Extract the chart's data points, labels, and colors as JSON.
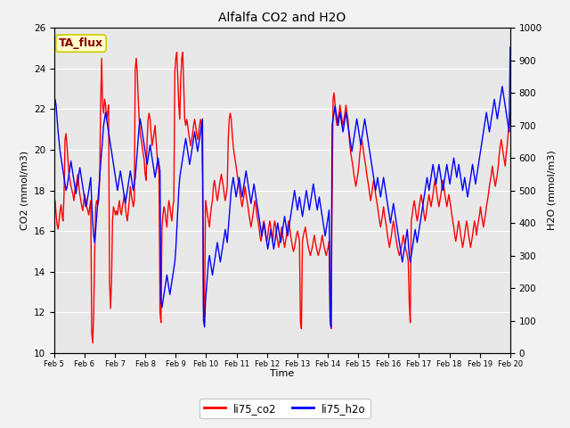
{
  "title": "Alfalfa CO2 and H2O",
  "xlabel": "Time",
  "ylabel_left": "CO2 (mmol/m3)",
  "ylabel_right": "H2O (mmol/m3)",
  "ylim_left": [
    10,
    26
  ],
  "ylim_right": [
    0,
    1000
  ],
  "yticks_left": [
    10,
    12,
    14,
    16,
    18,
    20,
    22,
    24,
    26
  ],
  "yticks_right": [
    0,
    100,
    200,
    300,
    400,
    500,
    600,
    700,
    800,
    900,
    1000
  ],
  "xtick_labels": [
    "Feb 5",
    "Feb 6",
    "Feb 7",
    "Feb 8",
    "Feb 9",
    "Feb 10",
    "Feb 11",
    "Feb 12",
    "Feb 13",
    "Feb 14",
    "Feb 15",
    "Feb 16",
    "Feb 17",
    "Feb 18",
    "Feb 19",
    "Feb 20"
  ],
  "legend_labels": [
    "li75_co2",
    "li75_h2o"
  ],
  "legend_colors": [
    "red",
    "blue"
  ],
  "annotation_text": "TA_flux",
  "annotation_color": "#8B0000",
  "annotation_bg": "#FFFFCC",
  "annotation_border": "#CCCC00",
  "plot_bg_color": "#E8E8E8",
  "fig_bg_color": "#F2F2F2",
  "line_color_co2": "red",
  "line_color_h2o": "blue",
  "line_width": 1.0,
  "co2_data": [
    17.2,
    17.5,
    16.8,
    16.3,
    16.1,
    16.5,
    17.0,
    17.3,
    16.8,
    16.5,
    17.8,
    20.5,
    20.8,
    20.2,
    19.5,
    18.8,
    18.5,
    18.2,
    18.0,
    17.8,
    17.5,
    18.0,
    18.2,
    18.5,
    18.8,
    18.2,
    17.8,
    17.5,
    17.2,
    17.0,
    17.5,
    17.8,
    17.5,
    17.2,
    17.0,
    16.8,
    17.2,
    17.5,
    11.0,
    10.5,
    12.0,
    15.0,
    17.2,
    17.5,
    17.3,
    17.5,
    18.5,
    22.2,
    24.5,
    22.2,
    21.8,
    22.5,
    22.2,
    21.5,
    21.8,
    22.2,
    13.5,
    12.2,
    13.5,
    16.5,
    17.2,
    17.0,
    16.8,
    17.0,
    16.8,
    17.2,
    17.5,
    17.0,
    16.8,
    17.2,
    17.5,
    17.8,
    17.2,
    16.8,
    16.5,
    17.0,
    17.5,
    18.2,
    17.8,
    17.5,
    17.2,
    17.5,
    24.0,
    24.5,
    23.8,
    22.5,
    21.5,
    20.8,
    20.5,
    20.2,
    19.8,
    19.5,
    18.8,
    18.5,
    20.5,
    21.5,
    21.8,
    21.5,
    20.8,
    20.2,
    20.5,
    20.8,
    21.2,
    20.5,
    19.8,
    19.2,
    18.8,
    12.0,
    11.5,
    16.2,
    16.8,
    17.2,
    17.0,
    16.5,
    16.2,
    17.0,
    17.5,
    17.2,
    16.8,
    16.5,
    17.2,
    17.5,
    23.8,
    24.5,
    24.8,
    23.5,
    22.2,
    21.5,
    23.5,
    24.5,
    24.8,
    23.2,
    21.5,
    21.2,
    21.5,
    21.2,
    20.8,
    20.5,
    20.2,
    20.5,
    20.8,
    21.2,
    21.5,
    21.2,
    20.8,
    20.5,
    20.8,
    21.2,
    21.5,
    21.2,
    18.5,
    12.2,
    11.8,
    17.5,
    17.2,
    16.8,
    16.5,
    16.2,
    16.8,
    17.2,
    17.5,
    18.2,
    18.5,
    18.2,
    17.8,
    17.5,
    17.8,
    18.2,
    18.5,
    18.8,
    18.5,
    18.2,
    17.8,
    17.5,
    17.8,
    18.2,
    20.5,
    21.5,
    21.8,
    21.5,
    20.8,
    20.2,
    19.8,
    19.5,
    19.2,
    18.8,
    18.5,
    18.2,
    17.8,
    17.5,
    17.2,
    17.5,
    17.8,
    18.2,
    17.8,
    17.5,
    17.2,
    16.8,
    16.5,
    16.2,
    16.5,
    16.8,
    17.2,
    17.5,
    17.2,
    16.8,
    16.5,
    16.2,
    15.8,
    15.5,
    15.8,
    16.2,
    16.5,
    16.2,
    15.8,
    15.5,
    15.8,
    16.2,
    16.5,
    16.2,
    15.8,
    15.5,
    16.2,
    16.5,
    16.2,
    15.8,
    15.5,
    15.2,
    15.5,
    15.8,
    16.2,
    15.8,
    15.5,
    15.2,
    15.5,
    15.8,
    16.2,
    16.5,
    16.2,
    15.8,
    15.5,
    15.2,
    15.0,
    15.2,
    15.5,
    15.8,
    16.0,
    15.8,
    15.5,
    11.5,
    11.2,
    15.5,
    15.8,
    16.0,
    16.2,
    15.8,
    15.5,
    15.2,
    15.0,
    14.8,
    15.0,
    15.2,
    15.5,
    15.8,
    15.5,
    15.2,
    15.0,
    14.8,
    15.0,
    15.2,
    15.5,
    15.8,
    15.5,
    15.2,
    15.0,
    14.8,
    15.0,
    15.2,
    15.5,
    11.5,
    11.2,
    17.5,
    22.5,
    22.8,
    22.2,
    21.5,
    21.2,
    21.5,
    21.8,
    22.2,
    21.8,
    21.5,
    21.2,
    21.5,
    21.8,
    22.2,
    21.8,
    21.5,
    20.8,
    20.2,
    19.8,
    19.5,
    19.2,
    18.8,
    18.5,
    18.2,
    18.5,
    18.8,
    19.2,
    19.8,
    20.2,
    20.5,
    20.2,
    19.8,
    19.5,
    19.2,
    18.8,
    18.5,
    18.2,
    17.8,
    17.5,
    17.8,
    18.2,
    18.5,
    18.2,
    17.8,
    17.5,
    17.2,
    16.8,
    16.5,
    16.2,
    16.5,
    16.8,
    17.2,
    16.8,
    16.5,
    16.2,
    15.8,
    15.5,
    15.2,
    15.5,
    15.8,
    16.2,
    16.5,
    16.2,
    15.8,
    15.5,
    15.2,
    15.0,
    14.8,
    15.0,
    15.2,
    15.5,
    15.8,
    15.5,
    15.2,
    15.0,
    14.8,
    14.5,
    12.5,
    11.5,
    16.5,
    16.8,
    17.2,
    17.5,
    17.2,
    16.8,
    16.5,
    16.8,
    17.2,
    17.5,
    17.8,
    17.5,
    17.2,
    16.8,
    16.5,
    16.8,
    17.2,
    17.5,
    17.8,
    17.5,
    17.2,
    17.5,
    17.8,
    18.2,
    18.5,
    18.2,
    17.8,
    17.5,
    17.2,
    17.5,
    17.8,
    18.2,
    18.5,
    18.2,
    17.8,
    17.5,
    17.2,
    17.5,
    17.8,
    17.5,
    17.2,
    16.8,
    16.5,
    16.2,
    15.8,
    15.5,
    15.8,
    16.2,
    16.5,
    16.2,
    15.8,
    15.5,
    15.2,
    15.5,
    15.8,
    16.2,
    16.5,
    16.2,
    15.8,
    15.5,
    15.2,
    15.5,
    15.8,
    16.2,
    16.5,
    16.2,
    15.8,
    16.2,
    16.5,
    16.8,
    17.2,
    16.8,
    16.5,
    16.2,
    16.5,
    16.8,
    17.2,
    17.5,
    17.8,
    18.2,
    18.5,
    18.8,
    19.2,
    18.8,
    18.5,
    18.2,
    18.5,
    18.8,
    19.2,
    19.8,
    20.2,
    20.5,
    20.2,
    19.8,
    19.5,
    19.2,
    19.8,
    20.2,
    20.8,
    21.2,
    21.8,
    22.2,
    22.8,
    22.2,
    21.8,
    21.2,
    20.8,
    20.2,
    19.8,
    11.5,
    11.2
  ],
  "h2o_data": [
    750,
    780,
    760,
    720,
    680,
    650,
    620,
    600,
    580,
    560,
    540,
    520,
    500,
    510,
    530,
    550,
    570,
    590,
    570,
    550,
    530,
    510,
    490,
    510,
    530,
    550,
    570,
    550,
    530,
    510,
    490,
    470,
    450,
    460,
    480,
    500,
    520,
    540,
    460,
    400,
    360,
    340,
    380,
    420,
    460,
    500,
    540,
    580,
    620,
    660,
    700,
    720,
    740,
    720,
    700,
    680,
    660,
    640,
    620,
    600,
    580,
    560,
    540,
    520,
    500,
    520,
    540,
    560,
    540,
    520,
    500,
    480,
    460,
    480,
    500,
    520,
    540,
    560,
    540,
    520,
    500,
    520,
    540,
    580,
    620,
    660,
    700,
    720,
    700,
    680,
    660,
    640,
    620,
    600,
    580,
    600,
    620,
    640,
    620,
    600,
    580,
    560,
    540,
    560,
    580,
    600,
    580,
    560,
    160,
    140,
    160,
    180,
    200,
    220,
    240,
    220,
    200,
    180,
    200,
    220,
    240,
    260,
    280,
    320,
    380,
    440,
    500,
    540,
    560,
    580,
    600,
    620,
    640,
    660,
    640,
    620,
    600,
    580,
    600,
    620,
    640,
    660,
    680,
    660,
    640,
    620,
    640,
    660,
    680,
    700,
    720,
    100,
    80,
    160,
    200,
    240,
    280,
    300,
    280,
    260,
    240,
    260,
    280,
    300,
    320,
    340,
    320,
    300,
    280,
    300,
    320,
    340,
    360,
    380,
    360,
    340,
    380,
    420,
    460,
    500,
    520,
    540,
    520,
    500,
    480,
    500,
    520,
    540,
    520,
    500,
    480,
    500,
    520,
    540,
    560,
    540,
    520,
    500,
    480,
    460,
    480,
    500,
    520,
    500,
    480,
    460,
    440,
    420,
    400,
    380,
    360,
    380,
    400,
    380,
    360,
    340,
    320,
    340,
    360,
    380,
    360,
    340,
    320,
    340,
    360,
    380,
    400,
    380,
    360,
    340,
    360,
    380,
    400,
    420,
    400,
    380,
    360,
    380,
    400,
    420,
    440,
    460,
    480,
    500,
    480,
    460,
    440,
    460,
    480,
    460,
    440,
    420,
    440,
    460,
    480,
    500,
    480,
    460,
    440,
    460,
    480,
    500,
    520,
    500,
    480,
    460,
    440,
    460,
    480,
    460,
    440,
    420,
    400,
    380,
    360,
    380,
    400,
    420,
    440,
    100,
    80,
    700,
    720,
    740,
    760,
    740,
    720,
    700,
    720,
    740,
    720,
    700,
    680,
    700,
    720,
    740,
    720,
    700,
    680,
    660,
    640,
    620,
    640,
    660,
    680,
    700,
    720,
    700,
    680,
    660,
    640,
    660,
    680,
    700,
    720,
    700,
    680,
    660,
    640,
    620,
    600,
    580,
    560,
    540,
    520,
    500,
    520,
    540,
    520,
    500,
    480,
    500,
    520,
    540,
    520,
    500,
    480,
    460,
    440,
    420,
    400,
    420,
    440,
    460,
    440,
    420,
    400,
    380,
    360,
    340,
    320,
    300,
    280,
    300,
    320,
    340,
    360,
    380,
    340,
    300,
    280,
    300,
    320,
    340,
    360,
    380,
    360,
    340,
    360,
    380,
    400,
    420,
    440,
    460,
    480,
    500,
    520,
    540,
    520,
    500,
    520,
    540,
    560,
    580,
    560,
    540,
    520,
    540,
    560,
    580,
    560,
    540,
    520,
    500,
    520,
    540,
    560,
    580,
    560,
    540,
    520,
    540,
    560,
    580,
    600,
    580,
    560,
    540,
    560,
    580,
    560,
    540,
    520,
    500,
    520,
    540,
    520,
    500,
    480,
    500,
    520,
    540,
    560,
    580,
    560,
    540,
    520,
    540,
    560,
    580,
    600,
    620,
    640,
    660,
    680,
    700,
    720,
    740,
    720,
    700,
    680,
    700,
    720,
    740,
    760,
    780,
    760,
    740,
    720,
    740,
    760,
    780,
    800,
    820,
    800,
    780,
    760,
    740,
    720,
    700,
    680,
    940
  ]
}
